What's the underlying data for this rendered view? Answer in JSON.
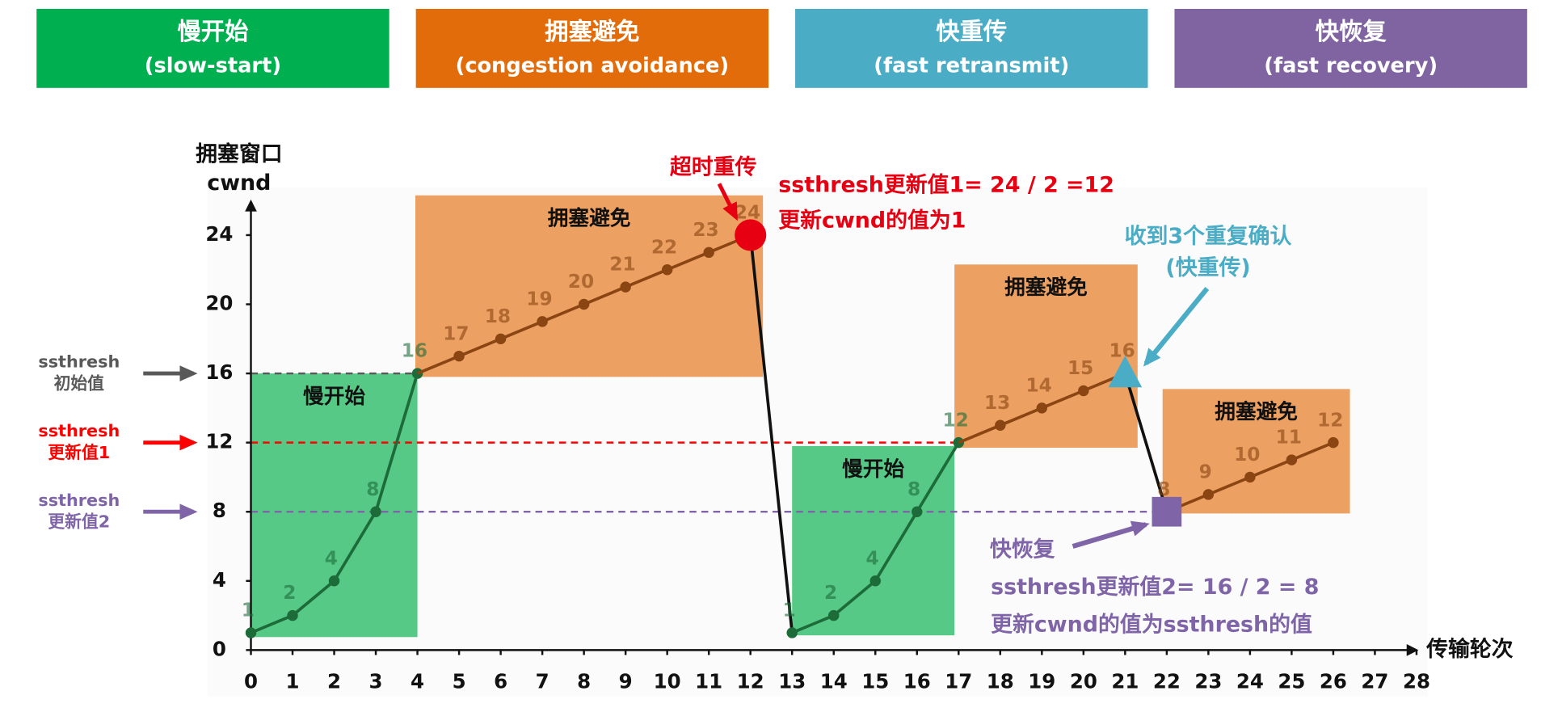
{
  "header": [
    {
      "title": "慢开始",
      "subtitle": "(slow-start)",
      "color": "#00b050"
    },
    {
      "title": "拥塞避免",
      "subtitle": "(congestion avoidance)",
      "color": "#e36c0a"
    },
    {
      "title": "快重传",
      "subtitle": "(fast retransmit)",
      "color": "#4bacc6"
    },
    {
      "title": "快恢复",
      "subtitle": "(fast recovery)",
      "color": "#8064a2"
    }
  ],
  "chart_data": {
    "type": "line",
    "y_label": [
      "拥塞窗口",
      "cwnd"
    ],
    "x_label": "传输轮次",
    "xlim": [
      0,
      28
    ],
    "ylim": [
      0,
      26
    ],
    "xticks": [
      0,
      1,
      2,
      3,
      4,
      5,
      6,
      7,
      8,
      9,
      10,
      11,
      12,
      13,
      14,
      15,
      16,
      17,
      18,
      19,
      20,
      21,
      22,
      23,
      24,
      25,
      26,
      27,
      28
    ],
    "yticks": [
      0,
      4,
      8,
      12,
      16,
      20,
      24
    ],
    "series": [
      {
        "color": "#1e6b3a",
        "x": [
          0,
          1,
          2,
          3,
          4
        ],
        "values": [
          1,
          2,
          4,
          8,
          16
        ]
      },
      {
        "color": "#8b4513",
        "x": [
          5,
          6,
          7,
          8,
          9,
          10,
          11,
          12
        ],
        "values": [
          17,
          18,
          19,
          20,
          21,
          22,
          23,
          24
        ]
      },
      {
        "color": "#1e6b3a",
        "x": [
          13,
          14,
          15,
          16,
          17
        ],
        "values": [
          1,
          2,
          4,
          8,
          12
        ]
      },
      {
        "color": "#8b4513",
        "x": [
          18,
          19,
          20,
          21
        ],
        "values": [
          13,
          14,
          15,
          16
        ]
      },
      {
        "color": "#8b4513",
        "x": [
          22,
          23,
          24,
          25,
          26
        ],
        "values": [
          8,
          9,
          10,
          11,
          12
        ]
      }
    ],
    "regions": [
      {
        "label": "慢开始",
        "color": "#55c985",
        "x": [
          0,
          4
        ],
        "y": [
          0.75,
          16
        ]
      },
      {
        "label": "拥塞避免",
        "color": "#eca062",
        "x": [
          3.95,
          12.3
        ],
        "y": [
          15.8,
          26.3
        ]
      },
      {
        "label": "慢开始",
        "color": "#55c985",
        "x": [
          13,
          16.9
        ],
        "y": [
          0.85,
          11.8
        ]
      },
      {
        "label": "拥塞避免",
        "color": "#eca062",
        "x": [
          16.9,
          21.3
        ],
        "y": [
          11.7,
          22.3
        ]
      },
      {
        "label": "拥塞避免",
        "color": "#eca062",
        "x": [
          21.9,
          26.4
        ],
        "y": [
          7.9,
          15.1
        ]
      }
    ],
    "thresholds": [
      {
        "value": 16,
        "lines": [
          "ssthresh",
          "初始值"
        ],
        "color": "#595959",
        "x_end": 4
      },
      {
        "value": 12,
        "lines": [
          "ssthresh",
          "更新值1"
        ],
        "color": "#ff0000",
        "x_end": 17
      },
      {
        "value": 8,
        "lines": [
          "ssthresh",
          "更新值2"
        ],
        "color": "#7f65a8",
        "x_end": 22
      }
    ],
    "annotations": [
      {
        "lines": [
          "超时重传"
        ],
        "color": "#e60012"
      },
      {
        "lines": [
          "ssthresh更新值1= 24 / 2 =12",
          "更新cwnd的值为1"
        ],
        "color": "#e60012"
      },
      {
        "lines": [
          "收到3个重复确认",
          "(快重传)"
        ],
        "color": "#4bacc6"
      },
      {
        "lines": [
          "快恢复"
        ],
        "color": "#7f65a8"
      },
      {
        "lines": [
          "ssthresh更新值2= 16 / 2 = 8",
          "更新cwnd的值为ssthresh的值"
        ],
        "color": "#7f65a8"
      }
    ]
  }
}
